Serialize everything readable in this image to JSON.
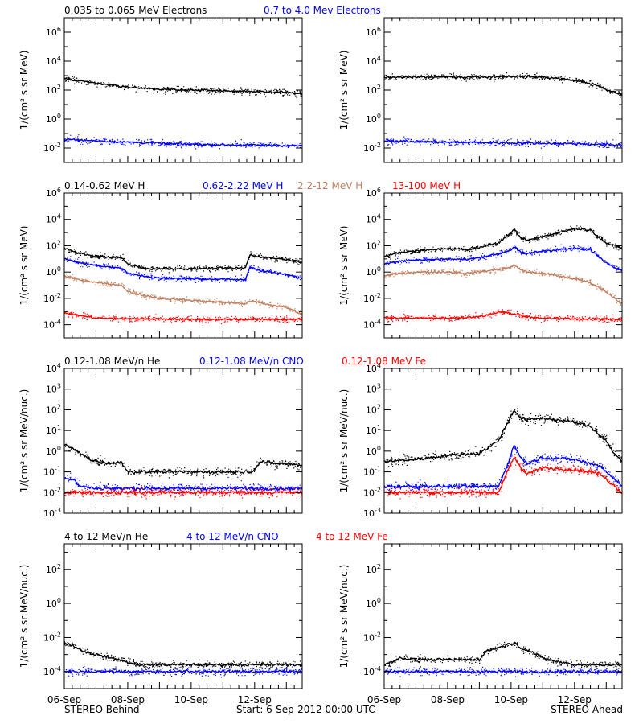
{
  "footer": {
    "left": "STEREO Behind",
    "center": "Start:  6-Sep-2012 00:00 UTC",
    "right": "STEREO Ahead"
  },
  "x_tick_labels": [
    "06-Sep",
    "08-Sep",
    "10-Sep",
    "12-Sep"
  ],
  "chart_data": [
    {
      "type": "scatter",
      "row": 1,
      "ylabel": "1/(cm² s sr MeV)",
      "yscale": "log",
      "ylim_exp": [
        -3,
        7
      ],
      "y_tick_exponents": [
        -2,
        0,
        2,
        4,
        6
      ],
      "x_unit": "days since 06-Sep-2012 00:00 UTC",
      "xlim": [
        0,
        7.5
      ],
      "legend": [
        {
          "label": "0.035 to 0.065 MeV Electrons",
          "color": "#000000"
        },
        {
          "label": "0.7 to 4.0 Mev Electrons",
          "color": "#0000ff"
        }
      ],
      "panels": [
        {
          "spacecraft": "STEREO Behind",
          "series": [
            {
              "color": "#000000",
              "x": [
                0,
                1,
                2,
                3,
                4,
                5,
                6,
                7,
                7.5
              ],
              "log10_y": [
                2.8,
                2.45,
                2.2,
                2.05,
                2.0,
                1.95,
                1.9,
                1.85,
                1.75
              ]
            },
            {
              "color": "#0000ff",
              "x": [
                0,
                2,
                4,
                6,
                7.5
              ],
              "log10_y": [
                -1.4,
                -1.6,
                -1.75,
                -1.8,
                -1.85
              ]
            }
          ]
        },
        {
          "spacecraft": "STEREO Ahead",
          "series": [
            {
              "color": "#000000",
              "x": [
                0,
                1,
                2,
                3,
                4,
                5,
                5.5,
                6.2,
                6.6,
                7,
                7.5
              ],
              "log10_y": [
                2.85,
                2.9,
                2.9,
                2.9,
                2.95,
                2.9,
                2.8,
                2.6,
                2.4,
                2.0,
                1.7
              ]
            },
            {
              "color": "#0000ff",
              "x": [
                0,
                2,
                4,
                6,
                7.5
              ],
              "log10_y": [
                -1.5,
                -1.6,
                -1.65,
                -1.7,
                -1.8
              ]
            }
          ]
        }
      ]
    },
    {
      "type": "scatter",
      "row": 2,
      "ylabel": "1/(cm² s sr MeV)",
      "yscale": "log",
      "ylim_exp": [
        -5,
        6
      ],
      "y_tick_exponents": [
        -4,
        -2,
        0,
        2,
        4,
        6
      ],
      "x_unit": "days since 06-Sep-2012 00:00 UTC",
      "xlim": [
        0,
        7.5
      ],
      "legend": [
        {
          "label": "0.14-0.62 MeV H",
          "color": "#000000"
        },
        {
          "label": "0.62-2.22 MeV H",
          "color": "#0000ff"
        },
        {
          "label": "2.2-12 MeV H",
          "color": "#c08060"
        },
        {
          "label": "13-100 MeV H",
          "color": "#ff0000"
        }
      ],
      "panels": [
        {
          "spacecraft": "STEREO Behind",
          "series": [
            {
              "color": "#000000",
              "x": [
                0,
                0.5,
                1,
                1.8,
                2.0,
                2.6,
                3,
                4,
                5,
                5.7,
                5.85,
                6.2,
                7,
                7.5
              ],
              "log10_y": [
                1.8,
                1.4,
                1.2,
                1.1,
                0.6,
                0.25,
                0.25,
                0.25,
                0.3,
                0.3,
                1.3,
                1.15,
                0.95,
                0.75
              ]
            },
            {
              "color": "#0000ff",
              "x": [
                0,
                0.5,
                1,
                1.8,
                2.0,
                2.6,
                3,
                4,
                5,
                5.7,
                5.85,
                6.2,
                7,
                7.5
              ],
              "log10_y": [
                1.0,
                0.7,
                0.5,
                0.3,
                -0.1,
                -0.35,
                -0.45,
                -0.5,
                -0.55,
                -0.6,
                0.4,
                0.1,
                -0.2,
                -0.5
              ]
            },
            {
              "color": "#c08060",
              "x": [
                0,
                0.5,
                1,
                1.8,
                2.0,
                2.6,
                3,
                4,
                5,
                5.7,
                5.9,
                6.5,
                7,
                7.5
              ],
              "log10_y": [
                -0.3,
                -0.6,
                -0.8,
                -1.0,
                -1.5,
                -1.8,
                -2.0,
                -2.15,
                -2.3,
                -2.4,
                -2.2,
                -2.5,
                -2.7,
                -3.2
              ]
            },
            {
              "color": "#ff0000",
              "x": [
                0,
                0.5,
                1,
                2,
                3,
                4,
                5,
                6,
                7,
                7.5
              ],
              "log10_y": [
                -3.1,
                -3.3,
                -3.5,
                -3.55,
                -3.55,
                -3.6,
                -3.6,
                -3.6,
                -3.6,
                -3.6
              ]
            }
          ]
        },
        {
          "spacecraft": "STEREO Ahead",
          "series": [
            {
              "color": "#000000",
              "x": [
                0,
                0.5,
                1,
                2,
                2.6,
                3,
                3.6,
                3.9,
                4.1,
                4.3,
                4.5,
                5,
                6,
                6.5,
                7,
                7.5
              ],
              "log10_y": [
                1.2,
                1.5,
                1.6,
                1.8,
                1.7,
                1.9,
                2.2,
                2.8,
                3.2,
                2.6,
                2.4,
                2.7,
                3.3,
                3.2,
                2.2,
                1.8
              ]
            },
            {
              "color": "#0000ff",
              "x": [
                0,
                0.5,
                1,
                2,
                2.6,
                3,
                3.6,
                3.9,
                4.1,
                4.3,
                4.5,
                5,
                6,
                6.5,
                7,
                7.5
              ],
              "log10_y": [
                0.6,
                0.85,
                0.9,
                1.0,
                0.95,
                1.1,
                1.4,
                1.6,
                1.9,
                1.5,
                1.4,
                1.6,
                1.8,
                1.7,
                0.7,
                0.1
              ]
            },
            {
              "color": "#c08060",
              "x": [
                0,
                0.5,
                1,
                2,
                2.6,
                3,
                3.6,
                3.9,
                4.1,
                4.3,
                4.5,
                5,
                6,
                6.5,
                7,
                7.5
              ],
              "log10_y": [
                -0.3,
                -0.1,
                0.0,
                0.0,
                -0.1,
                0.0,
                0.2,
                0.3,
                0.5,
                0.2,
                0.0,
                -0.1,
                -0.5,
                -0.8,
                -1.5,
                -2.4
              ]
            },
            {
              "color": "#ff0000",
              "x": [
                0,
                1,
                2,
                3,
                3.7,
                4.1,
                4.5,
                5,
                6,
                7,
                7.5
              ],
              "log10_y": [
                -3.5,
                -3.5,
                -3.5,
                -3.4,
                -3.0,
                -3.2,
                -3.4,
                -3.5,
                -3.55,
                -3.6,
                -3.6
              ]
            }
          ]
        }
      ]
    },
    {
      "type": "scatter",
      "row": 3,
      "ylabel": "1/(cm² s sr MeV/nuc.)",
      "yscale": "log",
      "ylim_exp": [
        -3,
        4
      ],
      "y_tick_exponents": [
        -3,
        -2,
        -1,
        0,
        1,
        2,
        3,
        4
      ],
      "x_unit": "days since 06-Sep-2012 00:00 UTC",
      "xlim": [
        0,
        7.5
      ],
      "legend": [
        {
          "label": "0.12-1.08 MeV/n He",
          "color": "#000000"
        },
        {
          "label": "0.12-1.08 MeV/n CNO",
          "color": "#0000ff"
        },
        {
          "label": "0.12-1.08 MeV Fe",
          "color": "#ff0000"
        }
      ],
      "panels": [
        {
          "spacecraft": "STEREO Behind",
          "series": [
            {
              "color": "#000000",
              "x": [
                0,
                0.3,
                0.7,
                1,
                1.5,
                1.8,
                2,
                3,
                4,
                5,
                5.9,
                6.2,
                6.6,
                7,
                7.5
              ],
              "log10_y": [
                0.3,
                0.1,
                -0.3,
                -0.5,
                -0.6,
                -0.5,
                -1.0,
                -1.0,
                -1.0,
                -1.0,
                -1.0,
                -0.5,
                -0.6,
                -0.6,
                -0.7
              ]
            },
            {
              "color": "#0000ff",
              "x": [
                0,
                0.3,
                0.5,
                1,
                2,
                4,
                6,
                7.5
              ],
              "log10_y": [
                -1.3,
                -1.4,
                -1.7,
                -1.8,
                -1.8,
                -1.8,
                -1.8,
                -1.8
              ]
            },
            {
              "color": "#ff0000",
              "x": [
                0,
                2,
                4,
                6,
                7.5
              ],
              "log10_y": [
                -2.0,
                -2.0,
                -2.0,
                -2.0,
                -2.0
              ]
            }
          ]
        },
        {
          "spacecraft": "STEREO Ahead",
          "series": [
            {
              "color": "#000000",
              "x": [
                0,
                1,
                2,
                3,
                3.2,
                3.6,
                3.9,
                4.1,
                4.3,
                4.5,
                5,
                6,
                6.5,
                7,
                7.2,
                7.5
              ],
              "log10_y": [
                -0.5,
                -0.4,
                -0.2,
                -0.1,
                0.1,
                0.5,
                1.4,
                2.0,
                1.6,
                1.5,
                1.6,
                1.4,
                1.2,
                0.5,
                0.0,
                -0.5
              ]
            },
            {
              "color": "#0000ff",
              "x": [
                0,
                1,
                2,
                3,
                3.6,
                3.9,
                4.1,
                4.3,
                4.5,
                5,
                6,
                6.5,
                6.8,
                7.5
              ],
              "log10_y": [
                -1.7,
                -1.7,
                -1.7,
                -1.7,
                -1.7,
                -0.6,
                0.3,
                -0.3,
                -0.6,
                -0.3,
                -0.4,
                -0.6,
                -0.7,
                -1.7
              ]
            },
            {
              "color": "#ff0000",
              "x": [
                0,
                1,
                2,
                3,
                3.6,
                3.9,
                4.1,
                4.3,
                4.5,
                5,
                6,
                6.5,
                6.8,
                7.5
              ],
              "log10_y": [
                -2.0,
                -2.0,
                -2.0,
                -2.0,
                -2.0,
                -0.9,
                -0.3,
                -0.8,
                -1.1,
                -0.8,
                -0.9,
                -1.0,
                -1.1,
                -2.0
              ]
            }
          ]
        }
      ]
    },
    {
      "type": "scatter",
      "row": 4,
      "ylabel": "1/(cm² s sr MeV/nuc.)",
      "yscale": "log",
      "ylim_exp": [
        -5,
        3.5
      ],
      "y_tick_exponents": [
        -4,
        -2,
        0,
        2
      ],
      "x_unit": "days since 06-Sep-2012 00:00 UTC",
      "xlim": [
        0,
        7.5
      ],
      "legend": [
        {
          "label": "4 to 12 MeV/n He",
          "color": "#000000"
        },
        {
          "label": "4 to 12 MeV/n CNO",
          "color": "#0000ff"
        },
        {
          "label": "4 to 12 MeV Fe",
          "color": "#ff0000"
        }
      ],
      "panels": [
        {
          "spacecraft": "STEREO Behind",
          "series": [
            {
              "color": "#000000",
              "x": [
                0,
                0.3,
                0.6,
                1,
                1.5,
                1.9,
                2.3,
                3,
                4,
                5,
                6,
                7,
                7.5
              ],
              "log10_y": [
                -2.3,
                -2.5,
                -2.8,
                -3.0,
                -3.2,
                -3.4,
                -3.6,
                -3.6,
                -3.6,
                -3.6,
                -3.6,
                -3.6,
                -3.6
              ]
            },
            {
              "color": "#0000ff",
              "x": [
                0,
                2,
                4,
                6,
                7.5
              ],
              "log10_y": [
                -4.0,
                -4.0,
                -4.0,
                -4.0,
                -4.0
              ]
            }
          ]
        },
        {
          "spacecraft": "STEREO Ahead",
          "series": [
            {
              "color": "#000000",
              "x": [
                0,
                0.5,
                1,
                2,
                3,
                3.2,
                3.6,
                3.9,
                4.1,
                4.3,
                4.6,
                5,
                5.4,
                6,
                7,
                7.5
              ],
              "log10_y": [
                -3.6,
                -3.2,
                -3.3,
                -3.3,
                -3.3,
                -2.8,
                -2.6,
                -2.4,
                -2.3,
                -2.6,
                -2.8,
                -3.2,
                -3.4,
                -3.6,
                -3.6,
                -3.6
              ]
            },
            {
              "color": "#0000ff",
              "x": [
                0,
                2,
                4,
                6,
                7.5
              ],
              "log10_y": [
                -4.0,
                -4.0,
                -4.0,
                -4.0,
                -4.0
              ]
            }
          ]
        }
      ]
    }
  ]
}
